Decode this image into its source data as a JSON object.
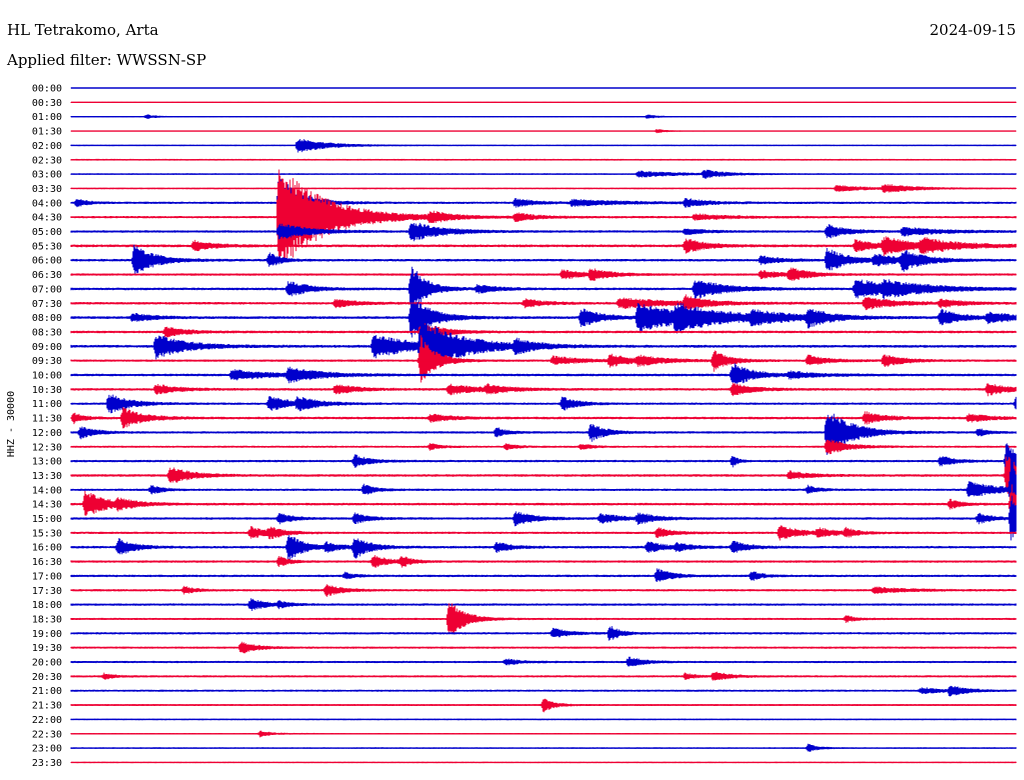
{
  "header": {
    "station": "HL Tetrakomo, Arta",
    "date": "2024-09-15",
    "filter": "Applied filter: WWSSN-SP"
  },
  "chart_data": {
    "type": "helicorder",
    "ylabel": "HHZ - 30000",
    "colors": [
      "#0000cc",
      "#ee0033"
    ],
    "rows": [
      {
        "label": "00:00",
        "noise": 0.3,
        "events": []
      },
      {
        "label": "00:30",
        "noise": 0.5,
        "events": []
      },
      {
        "label": "01:00",
        "noise": 0.6,
        "events": [
          {
            "t": 0.08,
            "a": 2,
            "d": 0.01
          },
          {
            "t": 0.61,
            "a": 2,
            "d": 0.01
          }
        ]
      },
      {
        "label": "01:30",
        "noise": 0.5,
        "events": [
          {
            "t": 0.62,
            "a": 2,
            "d": 0.01
          }
        ]
      },
      {
        "label": "02:00",
        "noise": 0.7,
        "events": [
          {
            "t": 0.24,
            "a": 7,
            "d": 0.03
          }
        ]
      },
      {
        "label": "02:30",
        "noise": 0.9,
        "events": []
      },
      {
        "label": "03:00",
        "noise": 0.8,
        "events": [
          {
            "t": 0.6,
            "a": 3,
            "d": 0.04
          },
          {
            "t": 0.67,
            "a": 4,
            "d": 0.02
          }
        ]
      },
      {
        "label": "03:30",
        "noise": 0.8,
        "events": [
          {
            "t": 0.81,
            "a": 3,
            "d": 0.03
          },
          {
            "t": 0.86,
            "a": 4,
            "d": 0.03
          }
        ]
      },
      {
        "label": "04:00",
        "noise": 1.2,
        "events": [
          {
            "t": 0.006,
            "a": 4,
            "d": 0.01
          },
          {
            "t": 0.22,
            "a": 30,
            "d": 0.02
          },
          {
            "t": 0.47,
            "a": 4,
            "d": 0.02
          },
          {
            "t": 0.53,
            "a": 3,
            "d": 0.05
          },
          {
            "t": 0.65,
            "a": 4,
            "d": 0.02
          }
        ]
      },
      {
        "label": "04:30",
        "noise": 1.2,
        "events": [
          {
            "t": 0.22,
            "a": 55,
            "d": 0.045
          },
          {
            "t": 0.38,
            "a": 5,
            "d": 0.02
          },
          {
            "t": 0.47,
            "a": 4,
            "d": 0.02
          },
          {
            "t": 0.66,
            "a": 3,
            "d": 0.03
          }
        ]
      },
      {
        "label": "05:00",
        "noise": 1.2,
        "events": [
          {
            "t": 0.22,
            "a": 8,
            "d": 0.03
          },
          {
            "t": 0.36,
            "a": 10,
            "d": 0.03
          },
          {
            "t": 0.65,
            "a": 3,
            "d": 0.02
          },
          {
            "t": 0.8,
            "a": 7,
            "d": 0.02
          },
          {
            "t": 0.88,
            "a": 4,
            "d": 0.04
          }
        ]
      },
      {
        "label": "05:30",
        "noise": 1.4,
        "events": [
          {
            "t": 0.13,
            "a": 5,
            "d": 0.02
          },
          {
            "t": 0.65,
            "a": 7,
            "d": 0.02
          },
          {
            "t": 0.83,
            "a": 6,
            "d": 0.02
          },
          {
            "t": 0.86,
            "a": 8,
            "d": 0.03
          },
          {
            "t": 0.9,
            "a": 6,
            "d": 0.04
          }
        ]
      },
      {
        "label": "06:00",
        "noise": 1.3,
        "events": [
          {
            "t": 0.067,
            "a": 16,
            "d": 0.02
          },
          {
            "t": 0.21,
            "a": 8,
            "d": 0.01
          },
          {
            "t": 0.73,
            "a": 4,
            "d": 0.02
          },
          {
            "t": 0.8,
            "a": 12,
            "d": 0.02
          },
          {
            "t": 0.85,
            "a": 5,
            "d": 0.03
          },
          {
            "t": 0.88,
            "a": 9,
            "d": 0.02
          }
        ]
      },
      {
        "label": "06:30",
        "noise": 1.2,
        "events": [
          {
            "t": 0.52,
            "a": 5,
            "d": 0.02
          },
          {
            "t": 0.55,
            "a": 5,
            "d": 0.02
          },
          {
            "t": 0.73,
            "a": 4,
            "d": 0.02
          },
          {
            "t": 0.76,
            "a": 6,
            "d": 0.02
          }
        ]
      },
      {
        "label": "07:00",
        "noise": 1.3,
        "events": [
          {
            "t": 0.23,
            "a": 8,
            "d": 0.02
          },
          {
            "t": 0.36,
            "a": 25,
            "d": 0.015
          },
          {
            "t": 0.43,
            "a": 4,
            "d": 0.02
          },
          {
            "t": 0.66,
            "a": 10,
            "d": 0.03
          },
          {
            "t": 0.83,
            "a": 10,
            "d": 0.04
          },
          {
            "t": 0.86,
            "a": 5,
            "d": 0.05
          }
        ]
      },
      {
        "label": "07:30",
        "noise": 1.3,
        "events": [
          {
            "t": 0.28,
            "a": 4,
            "d": 0.02
          },
          {
            "t": 0.48,
            "a": 4,
            "d": 0.02
          },
          {
            "t": 0.58,
            "a": 5,
            "d": 0.05
          },
          {
            "t": 0.65,
            "a": 7,
            "d": 0.02
          },
          {
            "t": 0.84,
            "a": 6,
            "d": 0.03
          },
          {
            "t": 0.92,
            "a": 4,
            "d": 0.02
          }
        ]
      },
      {
        "label": "08:00",
        "noise": 1.4,
        "events": [
          {
            "t": 0.065,
            "a": 4,
            "d": 0.02
          },
          {
            "t": 0.36,
            "a": 22,
            "d": 0.02
          },
          {
            "t": 0.54,
            "a": 9,
            "d": 0.02
          },
          {
            "t": 0.6,
            "a": 14,
            "d": 0.05
          },
          {
            "t": 0.64,
            "a": 9,
            "d": 0.05
          },
          {
            "t": 0.72,
            "a": 5,
            "d": 0.04
          },
          {
            "t": 0.78,
            "a": 8,
            "d": 0.02
          },
          {
            "t": 0.92,
            "a": 8,
            "d": 0.02
          },
          {
            "t": 0.97,
            "a": 5,
            "d": 0.03
          }
        ]
      },
      {
        "label": "08:30",
        "noise": 1.3,
        "events": [
          {
            "t": 0.1,
            "a": 5,
            "d": 0.02
          },
          {
            "t": 0.37,
            "a": 10,
            "d": 0.02
          }
        ]
      },
      {
        "label": "09:00",
        "noise": 1.4,
        "events": [
          {
            "t": 0.09,
            "a": 12,
            "d": 0.03
          },
          {
            "t": 0.32,
            "a": 12,
            "d": 0.04
          },
          {
            "t": 0.37,
            "a": 25,
            "d": 0.04
          },
          {
            "t": 0.47,
            "a": 6,
            "d": 0.02
          }
        ]
      },
      {
        "label": "09:30",
        "noise": 1.2,
        "events": [
          {
            "t": 0.37,
            "a": 25,
            "d": 0.015
          },
          {
            "t": 0.51,
            "a": 4,
            "d": 0.03
          },
          {
            "t": 0.57,
            "a": 6,
            "d": 0.02
          },
          {
            "t": 0.6,
            "a": 4,
            "d": 0.03
          },
          {
            "t": 0.68,
            "a": 10,
            "d": 0.015
          },
          {
            "t": 0.78,
            "a": 5,
            "d": 0.02
          },
          {
            "t": 0.86,
            "a": 6,
            "d": 0.02
          }
        ]
      },
      {
        "label": "10:00",
        "noise": 1.3,
        "events": [
          {
            "t": 0.17,
            "a": 5,
            "d": 0.04
          },
          {
            "t": 0.23,
            "a": 7,
            "d": 0.03
          },
          {
            "t": 0.7,
            "a": 12,
            "d": 0.02
          },
          {
            "t": 0.76,
            "a": 3,
            "d": 0.03
          }
        ]
      },
      {
        "label": "10:30",
        "noise": 1.3,
        "events": [
          {
            "t": 0.09,
            "a": 5,
            "d": 0.02
          },
          {
            "t": 0.28,
            "a": 5,
            "d": 0.02
          },
          {
            "t": 0.4,
            "a": 5,
            "d": 0.03
          },
          {
            "t": 0.44,
            "a": 4,
            "d": 0.02
          },
          {
            "t": 0.7,
            "a": 6,
            "d": 0.02
          },
          {
            "t": 0.97,
            "a": 6,
            "d": 0.02
          }
        ]
      },
      {
        "label": "11:00",
        "noise": 1.2,
        "events": [
          {
            "t": 0.04,
            "a": 10,
            "d": 0.02
          },
          {
            "t": 0.21,
            "a": 8,
            "d": 0.02
          },
          {
            "t": 0.24,
            "a": 6,
            "d": 0.02
          },
          {
            "t": 0.52,
            "a": 7,
            "d": 0.015
          },
          {
            "t": 1.0,
            "a": 6,
            "d": 0.01
          }
        ]
      },
      {
        "label": "11:30",
        "noise": 1.3,
        "events": [
          {
            "t": 0.003,
            "a": 5,
            "d": 0.01
          },
          {
            "t": 0.055,
            "a": 10,
            "d": 0.02
          },
          {
            "t": 0.38,
            "a": 4,
            "d": 0.02
          },
          {
            "t": 0.84,
            "a": 6,
            "d": 0.02
          },
          {
            "t": 0.95,
            "a": 4,
            "d": 0.02
          }
        ]
      },
      {
        "label": "12:00",
        "noise": 1.2,
        "events": [
          {
            "t": 0.01,
            "a": 6,
            "d": 0.015
          },
          {
            "t": 0.45,
            "a": 5,
            "d": 0.01
          },
          {
            "t": 0.55,
            "a": 9,
            "d": 0.015
          },
          {
            "t": 0.8,
            "a": 24,
            "d": 0.025
          },
          {
            "t": 0.96,
            "a": 4,
            "d": 0.01
          }
        ]
      },
      {
        "label": "12:30",
        "noise": 1.1,
        "events": [
          {
            "t": 0.38,
            "a": 3,
            "d": 0.01
          },
          {
            "t": 0.46,
            "a": 3,
            "d": 0.01
          },
          {
            "t": 0.54,
            "a": 3,
            "d": 0.01
          },
          {
            "t": 0.8,
            "a": 8,
            "d": 0.02
          }
        ]
      },
      {
        "label": "13:00",
        "noise": 1.2,
        "events": [
          {
            "t": 0.3,
            "a": 6,
            "d": 0.015
          },
          {
            "t": 0.7,
            "a": 6,
            "d": 0.005
          },
          {
            "t": 0.92,
            "a": 5,
            "d": 0.015
          },
          {
            "t": 0.99,
            "a": 22,
            "d": 0.01
          }
        ]
      },
      {
        "label": "13:30",
        "noise": 1.3,
        "events": [
          {
            "t": 0.105,
            "a": 9,
            "d": 0.02
          },
          {
            "t": 0.76,
            "a": 4,
            "d": 0.02
          },
          {
            "t": 0.99,
            "a": 22,
            "d": 0.015
          }
        ]
      },
      {
        "label": "14:00",
        "noise": 1.2,
        "events": [
          {
            "t": 0.085,
            "a": 5,
            "d": 0.01
          },
          {
            "t": 0.31,
            "a": 6,
            "d": 0.01
          },
          {
            "t": 0.78,
            "a": 4,
            "d": 0.01
          },
          {
            "t": 0.95,
            "a": 8,
            "d": 0.03
          },
          {
            "t": 0.995,
            "a": 30,
            "d": 0.02
          }
        ]
      },
      {
        "label": "14:30",
        "noise": 1.3,
        "events": [
          {
            "t": 0.015,
            "a": 14,
            "d": 0.02
          },
          {
            "t": 0.05,
            "a": 4,
            "d": 0.02
          },
          {
            "t": 0.93,
            "a": 5,
            "d": 0.01
          },
          {
            "t": 0.995,
            "a": 20,
            "d": 0.01
          }
        ]
      },
      {
        "label": "15:00",
        "noise": 1.2,
        "events": [
          {
            "t": 0.22,
            "a": 5,
            "d": 0.015
          },
          {
            "t": 0.3,
            "a": 5,
            "d": 0.015
          },
          {
            "t": 0.47,
            "a": 7,
            "d": 0.02
          },
          {
            "t": 0.56,
            "a": 5,
            "d": 0.02
          },
          {
            "t": 0.6,
            "a": 5,
            "d": 0.02
          },
          {
            "t": 0.96,
            "a": 5,
            "d": 0.015
          },
          {
            "t": 0.995,
            "a": 25,
            "d": 0.01
          }
        ]
      },
      {
        "label": "15:30",
        "noise": 1.2,
        "events": [
          {
            "t": 0.19,
            "a": 6,
            "d": 0.015
          },
          {
            "t": 0.21,
            "a": 5,
            "d": 0.015
          },
          {
            "t": 0.62,
            "a": 5,
            "d": 0.015
          },
          {
            "t": 0.75,
            "a": 7,
            "d": 0.02
          },
          {
            "t": 0.79,
            "a": 4,
            "d": 0.02
          },
          {
            "t": 0.82,
            "a": 4,
            "d": 0.01
          }
        ]
      },
      {
        "label": "16:00",
        "noise": 1.3,
        "events": [
          {
            "t": 0.05,
            "a": 9,
            "d": 0.015
          },
          {
            "t": 0.23,
            "a": 14,
            "d": 0.015
          },
          {
            "t": 0.27,
            "a": 4,
            "d": 0.015
          },
          {
            "t": 0.3,
            "a": 5,
            "d": 0.015
          },
          {
            "t": 0.3,
            "a": 6,
            "d": 0.015
          },
          {
            "t": 0.45,
            "a": 5,
            "d": 0.015
          },
          {
            "t": 0.61,
            "a": 6,
            "d": 0.015
          },
          {
            "t": 0.64,
            "a": 4,
            "d": 0.015
          },
          {
            "t": 0.7,
            "a": 6,
            "d": 0.015
          }
        ]
      },
      {
        "label": "16:30",
        "noise": 1.2,
        "events": [
          {
            "t": 0.22,
            "a": 5,
            "d": 0.01
          },
          {
            "t": 0.32,
            "a": 6,
            "d": 0.015
          },
          {
            "t": 0.35,
            "a": 5,
            "d": 0.01
          }
        ]
      },
      {
        "label": "17:00",
        "noise": 1.2,
        "events": [
          {
            "t": 0.29,
            "a": 3,
            "d": 0.01
          },
          {
            "t": 0.62,
            "a": 7,
            "d": 0.015
          },
          {
            "t": 0.72,
            "a": 5,
            "d": 0.01
          }
        ]
      },
      {
        "label": "17:30",
        "noise": 1.2,
        "events": [
          {
            "t": 0.12,
            "a": 4,
            "d": 0.01
          },
          {
            "t": 0.27,
            "a": 6,
            "d": 0.015
          },
          {
            "t": 0.85,
            "a": 3,
            "d": 0.03
          }
        ]
      },
      {
        "label": "18:00",
        "noise": 1.2,
        "events": [
          {
            "t": 0.19,
            "a": 6,
            "d": 0.015
          },
          {
            "t": 0.22,
            "a": 3,
            "d": 0.01
          }
        ]
      },
      {
        "label": "18:30",
        "noise": 1.1,
        "events": [
          {
            "t": 0.4,
            "a": 20,
            "d": 0.015
          },
          {
            "t": 0.82,
            "a": 3,
            "d": 0.01
          }
        ]
      },
      {
        "label": "19:00",
        "noise": 1.2,
        "events": [
          {
            "t": 0.51,
            "a": 5,
            "d": 0.015
          },
          {
            "t": 0.57,
            "a": 8,
            "d": 0.01
          }
        ]
      },
      {
        "label": "19:30",
        "noise": 1.1,
        "events": [
          {
            "t": 0.18,
            "a": 6,
            "d": 0.015
          }
        ]
      },
      {
        "label": "20:00",
        "noise": 1.1,
        "events": [
          {
            "t": 0.46,
            "a": 3,
            "d": 0.015
          },
          {
            "t": 0.59,
            "a": 5,
            "d": 0.015
          }
        ]
      },
      {
        "label": "20:30",
        "noise": 1.1,
        "events": [
          {
            "t": 0.035,
            "a": 3,
            "d": 0.01
          },
          {
            "t": 0.65,
            "a": 3,
            "d": 0.01
          },
          {
            "t": 0.68,
            "a": 5,
            "d": 0.015
          }
        ]
      },
      {
        "label": "21:00",
        "noise": 1.1,
        "events": [
          {
            "t": 0.93,
            "a": 5,
            "d": 0.015
          },
          {
            "t": 0.9,
            "a": 3,
            "d": 0.02
          }
        ]
      },
      {
        "label": "21:30",
        "noise": 1.0,
        "events": [
          {
            "t": 0.5,
            "a": 7,
            "d": 0.01
          }
        ]
      },
      {
        "label": "22:00",
        "noise": 0.8,
        "events": []
      },
      {
        "label": "22:30",
        "noise": 0.8,
        "events": [
          {
            "t": 0.2,
            "a": 3,
            "d": 0.01
          }
        ]
      },
      {
        "label": "23:00",
        "noise": 0.8,
        "events": [
          {
            "t": 0.78,
            "a": 4,
            "d": 0.01
          }
        ]
      },
      {
        "label": "23:30",
        "noise": 0.7,
        "events": []
      }
    ]
  }
}
